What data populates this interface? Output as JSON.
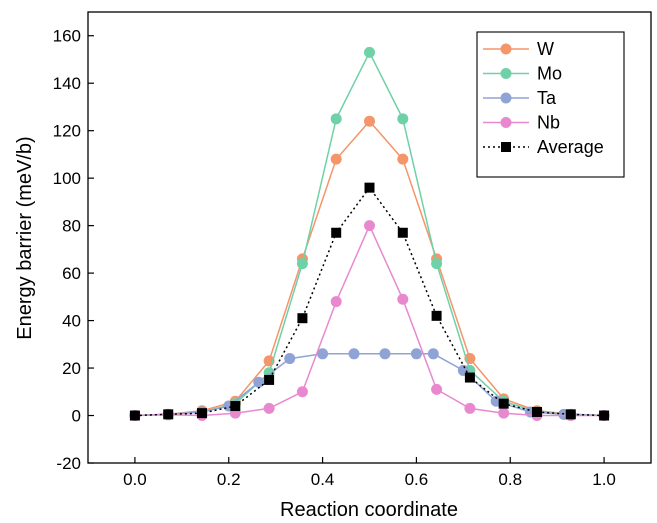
{
  "chart_data": {
    "type": "line",
    "title": "",
    "xlabel": "Reaction coordinate",
    "ylabel": "Energy barrier (meV/b)",
    "xlim": [
      -0.1,
      1.1
    ],
    "ylim": [
      -20,
      170
    ],
    "xticks": [
      0.0,
      0.2,
      0.4,
      0.6,
      0.8,
      1.0
    ],
    "xtick_labels": [
      "0.0",
      "0.2",
      "0.4",
      "0.6",
      "0.8",
      "1.0"
    ],
    "yticks": [
      -20,
      0,
      20,
      40,
      60,
      80,
      100,
      120,
      140,
      160
    ],
    "ytick_labels": [
      "-20",
      "0",
      "20",
      "40",
      "60",
      "80",
      "100",
      "120",
      "140",
      "160"
    ],
    "grid": false,
    "legend_position": "top-right",
    "series": [
      {
        "name": "W",
        "color": "#f4956a",
        "marker": "circle",
        "line_style": "solid",
        "x": [
          0.0,
          0.071,
          0.143,
          0.214,
          0.286,
          0.357,
          0.429,
          0.5,
          0.571,
          0.643,
          0.714,
          0.786,
          0.857,
          0.929,
          1.0
        ],
        "y": [
          0,
          0.5,
          2,
          6,
          23,
          66,
          108,
          124,
          108,
          66,
          24,
          7,
          2,
          0.5,
          0
        ]
      },
      {
        "name": "Mo",
        "color": "#6fd1a8",
        "marker": "circle",
        "line_style": "solid",
        "x": [
          0.0,
          0.071,
          0.143,
          0.214,
          0.286,
          0.357,
          0.429,
          0.5,
          0.571,
          0.643,
          0.714,
          0.786,
          0.857,
          0.929,
          1.0
        ],
        "y": [
          0,
          0.5,
          1.5,
          5,
          18,
          64,
          125,
          153,
          125,
          64,
          19,
          6,
          1.5,
          0.5,
          0
        ]
      },
      {
        "name": "Ta",
        "color": "#8fa4d4",
        "marker": "circle",
        "line_style": "solid",
        "x": [
          0.0,
          0.071,
          0.143,
          0.2,
          0.264,
          0.33,
          0.4,
          0.467,
          0.533,
          0.6,
          0.636,
          0.7,
          0.77,
          0.843,
          0.914,
          1.0
        ],
        "y": [
          0,
          0.5,
          1.5,
          4,
          14,
          24,
          26,
          26,
          26,
          26,
          26,
          19,
          6,
          1.5,
          0.5,
          0
        ]
      },
      {
        "name": "Nb",
        "color": "#e889cf",
        "marker": "circle",
        "line_style": "solid",
        "x": [
          0.0,
          0.071,
          0.143,
          0.214,
          0.286,
          0.357,
          0.429,
          0.5,
          0.571,
          0.643,
          0.714,
          0.786,
          0.857,
          0.929,
          1.0
        ],
        "y": [
          0,
          0.3,
          0,
          1,
          3,
          10,
          48,
          80,
          49,
          11,
          3,
          1,
          0,
          0,
          0
        ]
      },
      {
        "name": "Average",
        "color": "#000000",
        "marker": "square",
        "line_style": "dotted",
        "x": [
          0.0,
          0.071,
          0.143,
          0.214,
          0.286,
          0.357,
          0.429,
          0.5,
          0.571,
          0.643,
          0.714,
          0.786,
          0.857,
          0.929,
          1.0
        ],
        "y": [
          0,
          0.5,
          1,
          4,
          15,
          41,
          77,
          96,
          77,
          42,
          16,
          5,
          1.5,
          0.5,
          0
        ]
      }
    ]
  }
}
